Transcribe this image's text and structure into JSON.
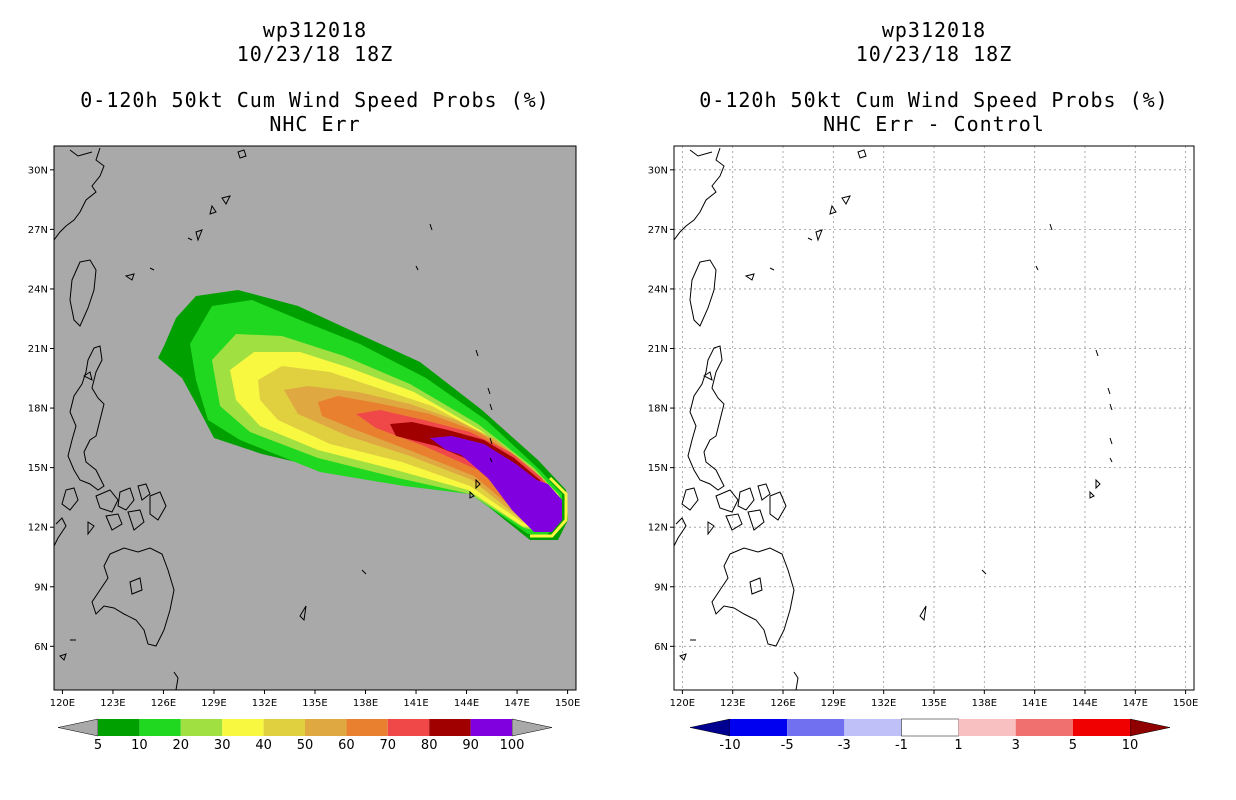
{
  "left_panel": {
    "storm_id": "wp312018",
    "datetime": "10/23/18 18Z",
    "product": "0-120h 50kt Cum Wind Speed Probs (%)",
    "subtitle": "NHC Err",
    "background_color": "#a9a9a9",
    "colorbar": {
      "labels": [
        "5",
        "10",
        "20",
        "30",
        "40",
        "50",
        "60",
        "70",
        "80",
        "90",
        "100"
      ],
      "colors": [
        "#00a000",
        "#20d820",
        "#a0e040",
        "#f8f840",
        "#e0d040",
        "#e0a840",
        "#e88030",
        "#f04848",
        "#a00000",
        "#8000e0"
      ]
    }
  },
  "right_panel": {
    "storm_id": "wp312018",
    "datetime": "10/23/18 18Z",
    "product": "0-120h 50kt Cum Wind Speed Probs (%)",
    "subtitle": "NHC Err - Control",
    "background_color": "#ffffff",
    "colorbar": {
      "labels": [
        "-10",
        "-5",
        "-3",
        "-1",
        "1",
        "3",
        "5",
        "10"
      ],
      "colors": [
        "#000090",
        "#0000f0",
        "#7070f0",
        "#c0c0f8",
        "#ffffff",
        "#f8c0c0",
        "#f07070",
        "#f00000",
        "#900000"
      ]
    }
  },
  "axes": {
    "lon_labels": [
      "120E",
      "123E",
      "126E",
      "129E",
      "132E",
      "135E",
      "138E",
      "141E",
      "144E",
      "147E",
      "150E"
    ],
    "lat_labels": [
      "30N",
      "27N",
      "24N",
      "21N",
      "18N",
      "15N",
      "12N",
      "9N",
      "6N"
    ],
    "lon_range": [
      119.5,
      150.5
    ],
    "lat_range": [
      3.8,
      31.2
    ]
  }
}
